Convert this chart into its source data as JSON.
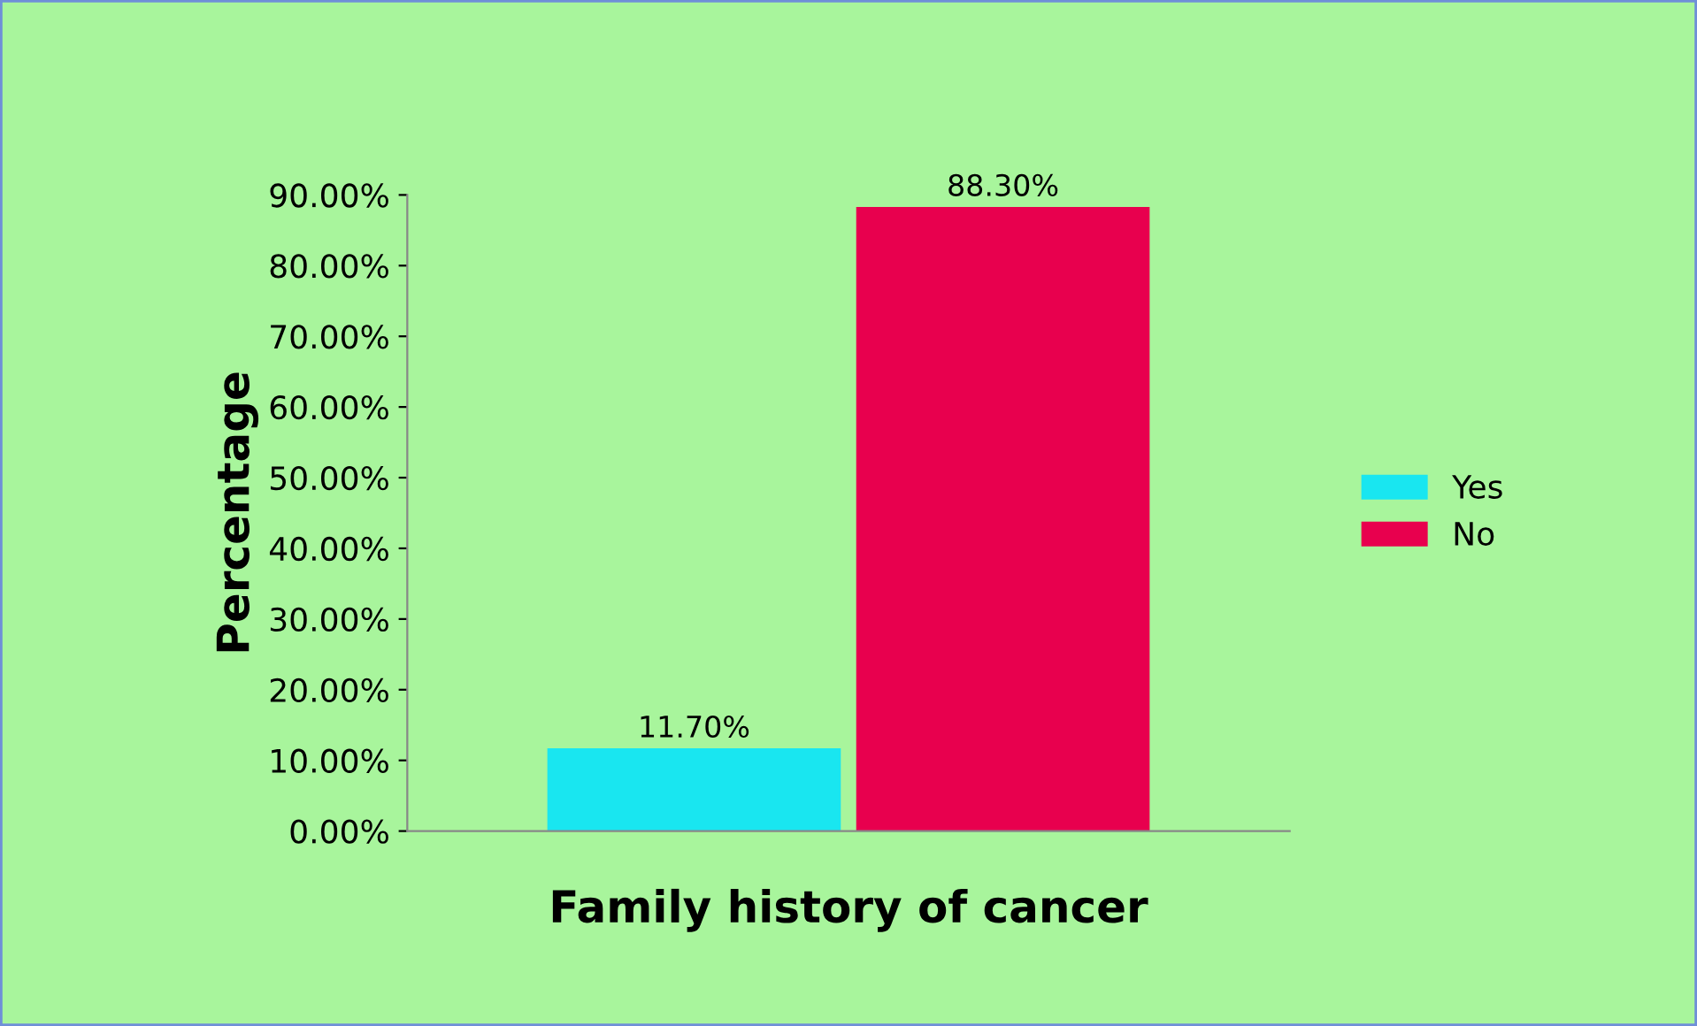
{
  "chart_data": {
    "type": "bar",
    "xlabel": "Family history of cancer",
    "ylabel": "Percentage",
    "categories": [
      null
    ],
    "series": [
      {
        "name": "Yes",
        "color": "#19e6f0",
        "values": [
          11.7
        ],
        "value_labels": [
          "11.70%"
        ]
      },
      {
        "name": "No",
        "color": "#e8004e",
        "values": [
          88.3
        ],
        "value_labels": [
          "88.30%"
        ]
      }
    ],
    "ylim": [
      0,
      90
    ],
    "yticks": [
      {
        "value": 0,
        "label": "0.00%"
      },
      {
        "value": 10,
        "label": "10.00%"
      },
      {
        "value": 20,
        "label": "20.00%"
      },
      {
        "value": 30,
        "label": "30.00%"
      },
      {
        "value": 40,
        "label": "40.00%"
      },
      {
        "value": 50,
        "label": "50.00%"
      },
      {
        "value": 60,
        "label": "60.00%"
      },
      {
        "value": 70,
        "label": "70.00%"
      },
      {
        "value": 80,
        "label": "80.00%"
      },
      {
        "value": 90,
        "label": "90.00%"
      }
    ],
    "grid": false,
    "legend": "right"
  }
}
